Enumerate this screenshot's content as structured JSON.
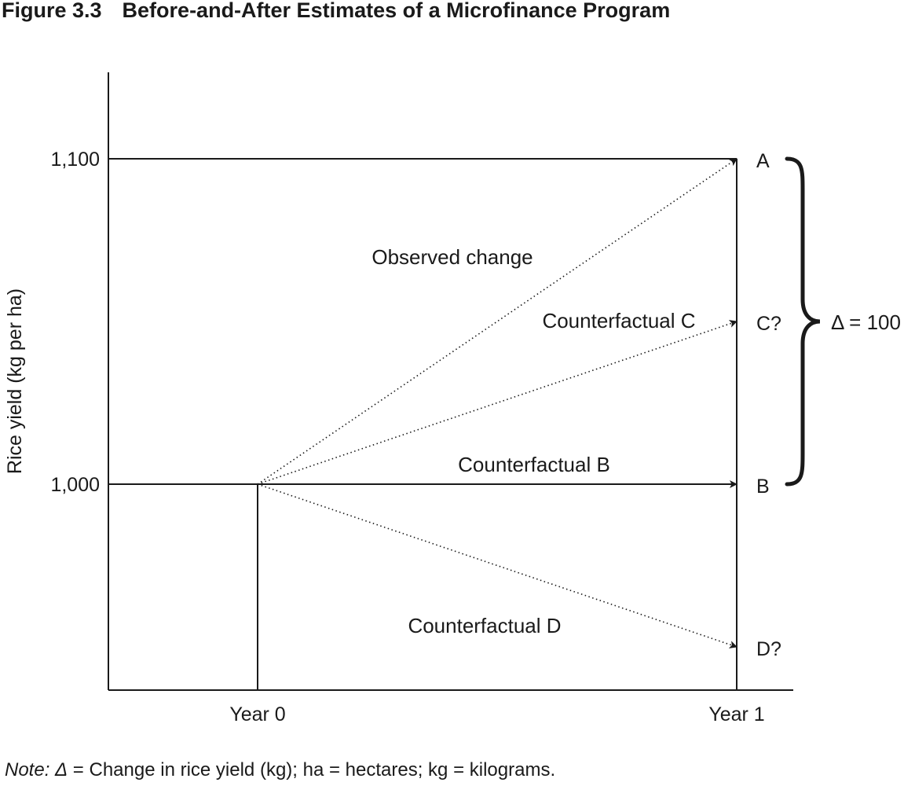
{
  "figure": {
    "number": "Figure 3.3",
    "title": "Before-and-After Estimates of a Microfinance Program"
  },
  "chart_data": {
    "type": "line",
    "ylabel": "Rice yield (kg per ha)",
    "xlabel": "",
    "x_ticks": [
      "Year 0",
      "Year 1"
    ],
    "y_ticks": [
      1000,
      1100
    ],
    "y_tick_labels": [
      "1,000",
      "1,100"
    ],
    "ylim": [
      937,
      1113
    ],
    "grid": false,
    "legend": "none",
    "start_point": {
      "x": "Year 0",
      "y": 1000
    },
    "series": [
      {
        "name": "Observed change",
        "point": "A",
        "x": [
          "Year 0",
          "Year 1"
        ],
        "y": [
          1000,
          1100
        ],
        "style": "dotted"
      },
      {
        "name": "Counterfactual C",
        "point": "C?",
        "x": [
          "Year 0",
          "Year 1"
        ],
        "y": [
          1000,
          1050
        ],
        "style": "dotted"
      },
      {
        "name": "Counterfactual B",
        "point": "B",
        "x": [
          "Year 0",
          "Year 1"
        ],
        "y": [
          1000,
          1000
        ],
        "style": "solid"
      },
      {
        "name": "Counterfactual D",
        "point": "D?",
        "x": [
          "Year 0",
          "Year 1"
        ],
        "y": [
          1000,
          950
        ],
        "style": "dotted"
      }
    ],
    "point_labels": [
      "A",
      "C?",
      "B",
      "D?"
    ],
    "annotations": {
      "observed": "Observed change",
      "counterfactual_c": "Counterfactual C",
      "counterfactual_b": "Counterfactual B",
      "counterfactual_d": "Counterfactual D"
    },
    "brace": {
      "from": 1000,
      "to": 1100,
      "label": "Δ = 100"
    }
  },
  "note": {
    "lead": "Note: Δ",
    "text": " = Change in rice yield (kg); ha = hectares; kg = kilograms."
  }
}
